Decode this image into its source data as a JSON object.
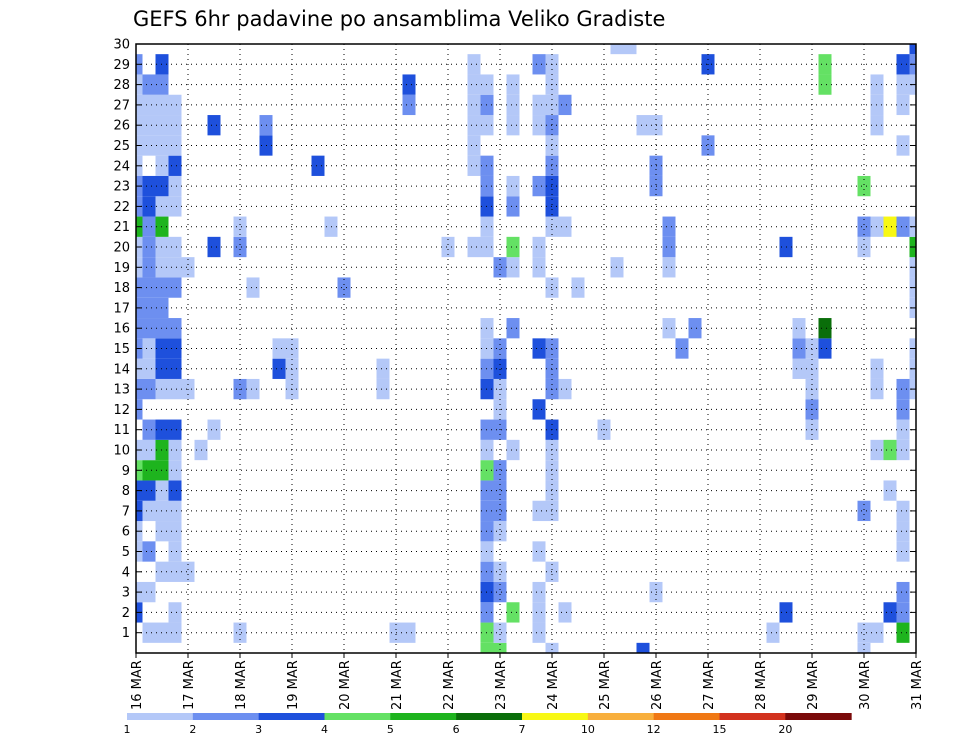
{
  "chart_data": {
    "type": "heatmap",
    "title": "GEFS 6hr padavine po ansamblima Veliko Gradiste",
    "xlabel": "",
    "ylabel": "",
    "x_ticks": [
      "16 MAR",
      "17 MAR",
      "18 MAR",
      "19 MAR",
      "20 MAR",
      "21 MAR",
      "22 MAR",
      "23 MAR",
      "24 MAR",
      "25 MAR",
      "26 MAR",
      "27 MAR",
      "28 MAR",
      "29 MAR",
      "30 MAR",
      "31 MAR"
    ],
    "y_ticks": [
      "1",
      "2",
      "3",
      "4",
      "5",
      "6",
      "7",
      "8",
      "9",
      "10",
      "11",
      "12",
      "13",
      "14",
      "15",
      "16",
      "17",
      "18",
      "19",
      "20",
      "21",
      "22",
      "23",
      "24",
      "25",
      "26",
      "27",
      "28",
      "29",
      "30"
    ],
    "time_steps": 61,
    "members_range": [
      0,
      30
    ],
    "grid": true,
    "colorbar": {
      "labels": [
        "1",
        "2",
        "3",
        "4",
        "5",
        "6",
        "7",
        "10",
        "12",
        "15",
        "20"
      ],
      "colors": [
        "#b4c8f8",
        "#6d8ff0",
        "#1e50dc",
        "#64e164",
        "#1eb41e",
        "#0a6e0a",
        "#f8f814",
        "#f8af3c",
        "#f07814",
        "#d2321e",
        "#7a0a0a"
      ]
    },
    "cells": [
      [
        2,
        0,
        3
      ],
      [
        3,
        0,
        1
      ],
      [
        5,
        0,
        1
      ],
      [
        6,
        0,
        1
      ],
      [
        7,
        0,
        3
      ],
      [
        8,
        0,
        3
      ],
      [
        9,
        0,
        4
      ],
      [
        10,
        0,
        1
      ],
      [
        12,
        0,
        2
      ],
      [
        13,
        0,
        2
      ],
      [
        14,
        0,
        1
      ],
      [
        15,
        0,
        2
      ],
      [
        16,
        0,
        2
      ],
      [
        17,
        0,
        2
      ],
      [
        18,
        0,
        2
      ],
      [
        19,
        0,
        1
      ],
      [
        20,
        0,
        1
      ],
      [
        21,
        0,
        5
      ],
      [
        22,
        0,
        2
      ],
      [
        23,
        0,
        2
      ],
      [
        24,
        0,
        1
      ],
      [
        25,
        0,
        1
      ],
      [
        26,
        0,
        1
      ],
      [
        27,
        0,
        1
      ],
      [
        28,
        0,
        1
      ],
      [
        29,
        0,
        2
      ],
      [
        1,
        1,
        1
      ],
      [
        3,
        1,
        1
      ],
      [
        5,
        1,
        2
      ],
      [
        7,
        1,
        1
      ],
      [
        8,
        1,
        3
      ],
      [
        9,
        1,
        5
      ],
      [
        10,
        1,
        1
      ],
      [
        11,
        1,
        2
      ],
      [
        13,
        1,
        2
      ],
      [
        14,
        1,
        1
      ],
      [
        15,
        1,
        1
      ],
      [
        16,
        1,
        2
      ],
      [
        17,
        1,
        2
      ],
      [
        18,
        1,
        2
      ],
      [
        19,
        1,
        2
      ],
      [
        20,
        1,
        2
      ],
      [
        21,
        1,
        2
      ],
      [
        22,
        1,
        3
      ],
      [
        23,
        1,
        3
      ],
      [
        25,
        1,
        1
      ],
      [
        26,
        1,
        1
      ],
      [
        27,
        1,
        1
      ],
      [
        28,
        1,
        2
      ],
      [
        1,
        2,
        1
      ],
      [
        4,
        2,
        1
      ],
      [
        6,
        2,
        1
      ],
      [
        7,
        2,
        1
      ],
      [
        8,
        2,
        1
      ],
      [
        9,
        2,
        5
      ],
      [
        10,
        2,
        5
      ],
      [
        11,
        2,
        3
      ],
      [
        13,
        2,
        1
      ],
      [
        14,
        2,
        3
      ],
      [
        15,
        2,
        3
      ],
      [
        16,
        2,
        2
      ],
      [
        17,
        2,
        2
      ],
      [
        18,
        2,
        2
      ],
      [
        19,
        2,
        1
      ],
      [
        20,
        2,
        1
      ],
      [
        21,
        2,
        5
      ],
      [
        22,
        2,
        1
      ],
      [
        23,
        2,
        3
      ],
      [
        24,
        2,
        1
      ],
      [
        25,
        2,
        1
      ],
      [
        26,
        2,
        1
      ],
      [
        27,
        2,
        1
      ],
      [
        28,
        2,
        2
      ],
      [
        29,
        2,
        3
      ],
      [
        1,
        3,
        1
      ],
      [
        2,
        3,
        1
      ],
      [
        4,
        3,
        1
      ],
      [
        5,
        3,
        1
      ],
      [
        6,
        3,
        1
      ],
      [
        7,
        3,
        1
      ],
      [
        8,
        3,
        3
      ],
      [
        9,
        3,
        1
      ],
      [
        10,
        3,
        1
      ],
      [
        11,
        3,
        3
      ],
      [
        13,
        3,
        1
      ],
      [
        14,
        3,
        3
      ],
      [
        15,
        3,
        3
      ],
      [
        16,
        3,
        2
      ],
      [
        18,
        3,
        2
      ],
      [
        19,
        3,
        1
      ],
      [
        20,
        3,
        1
      ],
      [
        22,
        3,
        1
      ],
      [
        23,
        3,
        1
      ],
      [
        24,
        3,
        3
      ],
      [
        25,
        3,
        1
      ],
      [
        26,
        3,
        1
      ],
      [
        27,
        3,
        1
      ],
      [
        4,
        4,
        1
      ],
      [
        13,
        4,
        1
      ],
      [
        19,
        4,
        1
      ],
      [
        10,
        5,
        1
      ],
      [
        11,
        6,
        1
      ],
      [
        20,
        6,
        3
      ],
      [
        26,
        6,
        3
      ],
      [
        1,
        8,
        1
      ],
      [
        13,
        8,
        2
      ],
      [
        20,
        8,
        2
      ],
      [
        21,
        8,
        1
      ],
      [
        13,
        9,
        1
      ],
      [
        18,
        9,
        1
      ],
      [
        25,
        10,
        3
      ],
      [
        26,
        10,
        2
      ],
      [
        14,
        11,
        3
      ],
      [
        15,
        11,
        1
      ],
      [
        13,
        12,
        1
      ],
      [
        14,
        12,
        1
      ],
      [
        15,
        12,
        1
      ],
      [
        24,
        14,
        3
      ],
      [
        21,
        15,
        1
      ],
      [
        18,
        16,
        2
      ],
      [
        13,
        19,
        1
      ],
      [
        14,
        19,
        1
      ],
      [
        1,
        20,
        1
      ],
      [
        1,
        21,
        1
      ],
      [
        27,
        21,
        2
      ],
      [
        28,
        21,
        3
      ],
      [
        20,
        24,
        1
      ],
      [
        20,
        26,
        1
      ],
      [
        24,
        26,
        1
      ],
      [
        25,
        26,
        1
      ],
      [
        26,
        26,
        1
      ],
      [
        27,
        26,
        1
      ],
      [
        28,
        26,
        1
      ],
      [
        29,
        26,
        1
      ],
      [
        0,
        27,
        4
      ],
      [
        1,
        27,
        4
      ],
      [
        2,
        27,
        2
      ],
      [
        3,
        27,
        3
      ],
      [
        4,
        27,
        2
      ],
      [
        5,
        27,
        1
      ],
      [
        6,
        27,
        2
      ],
      [
        7,
        27,
        2
      ],
      [
        8,
        27,
        2
      ],
      [
        9,
        27,
        4
      ],
      [
        10,
        27,
        1
      ],
      [
        11,
        27,
        2
      ],
      [
        13,
        27,
        3
      ],
      [
        14,
        27,
        2
      ],
      [
        15,
        27,
        1
      ],
      [
        16,
        27,
        1
      ],
      [
        20,
        27,
        1
      ],
      [
        21,
        27,
        1
      ],
      [
        22,
        27,
        3
      ],
      [
        23,
        27,
        2
      ],
      [
        24,
        27,
        2
      ],
      [
        26,
        27,
        1
      ],
      [
        27,
        27,
        2
      ],
      [
        28,
        27,
        1
      ],
      [
        0,
        28,
        4
      ],
      [
        1,
        28,
        1
      ],
      [
        3,
        28,
        2
      ],
      [
        4,
        28,
        1
      ],
      [
        6,
        28,
        1
      ],
      [
        7,
        28,
        2
      ],
      [
        8,
        28,
        2
      ],
      [
        9,
        28,
        2
      ],
      [
        11,
        28,
        2
      ],
      [
        12,
        28,
        1
      ],
      [
        13,
        28,
        1
      ],
      [
        14,
        28,
        3
      ],
      [
        15,
        28,
        2
      ],
      [
        19,
        28,
        2
      ],
      [
        2,
        29,
        4
      ],
      [
        10,
        29,
        1
      ],
      [
        16,
        29,
        2
      ],
      [
        19,
        29,
        1
      ],
      [
        20,
        29,
        4
      ],
      [
        22,
        29,
        2
      ],
      [
        23,
        29,
        1
      ],
      [
        26,
        29,
        1
      ],
      [
        27,
        29,
        1
      ],
      [
        28,
        29,
        1
      ],
      [
        1,
        31,
        1
      ],
      [
        2,
        31,
        1
      ],
      [
        3,
        31,
        1
      ],
      [
        5,
        31,
        1
      ],
      [
        7,
        31,
        1
      ],
      [
        12,
        31,
        3
      ],
      [
        15,
        31,
        3
      ],
      [
        19,
        31,
        1
      ],
      [
        20,
        31,
        1
      ],
      [
        23,
        31,
        2
      ],
      [
        26,
        31,
        1
      ],
      [
        27,
        31,
        1
      ],
      [
        29,
        31,
        2
      ],
      [
        0,
        32,
        1
      ],
      [
        4,
        32,
        1
      ],
      [
        7,
        32,
        1
      ],
      [
        8,
        32,
        1
      ],
      [
        9,
        32,
        1
      ],
      [
        10,
        32,
        1
      ],
      [
        11,
        32,
        3
      ],
      [
        13,
        32,
        2
      ],
      [
        14,
        32,
        2
      ],
      [
        15,
        32,
        2
      ],
      [
        18,
        32,
        1
      ],
      [
        21,
        32,
        1
      ],
      [
        22,
        32,
        3
      ],
      [
        23,
        32,
        3
      ],
      [
        24,
        32,
        2
      ],
      [
        25,
        32,
        1
      ],
      [
        26,
        32,
        2
      ],
      [
        27,
        32,
        1
      ],
      [
        28,
        32,
        1
      ],
      [
        29,
        32,
        1
      ],
      [
        2,
        33,
        1
      ],
      [
        13,
        33,
        1
      ],
      [
        21,
        33,
        1
      ],
      [
        27,
        33,
        2
      ],
      [
        18,
        34,
        1
      ],
      [
        11,
        36,
        1
      ],
      [
        19,
        37,
        1
      ],
      [
        30,
        37,
        1
      ],
      [
        30,
        38,
        1
      ],
      [
        0,
        39,
        3
      ],
      [
        26,
        39,
        1
      ],
      [
        3,
        40,
        1
      ],
      [
        23,
        40,
        2
      ],
      [
        24,
        40,
        2
      ],
      [
        26,
        40,
        1
      ],
      [
        16,
        41,
        1
      ],
      [
        19,
        41,
        1
      ],
      [
        20,
        41,
        2
      ],
      [
        21,
        41,
        2
      ],
      [
        15,
        42,
        2
      ],
      [
        16,
        43,
        2
      ],
      [
        25,
        44,
        2
      ],
      [
        29,
        44,
        3
      ],
      [
        1,
        49,
        1
      ],
      [
        2,
        50,
        3
      ],
      [
        20,
        50,
        3
      ],
      [
        14,
        51,
        1
      ],
      [
        15,
        51,
        2
      ],
      [
        16,
        51,
        1
      ],
      [
        11,
        52,
        1
      ],
      [
        12,
        52,
        2
      ],
      [
        13,
        52,
        1
      ],
      [
        14,
        52,
        1
      ],
      [
        15,
        52,
        1
      ],
      [
        15,
        53,
        3
      ],
      [
        16,
        53,
        6
      ],
      [
        28,
        53,
        4
      ],
      [
        29,
        53,
        4
      ],
      [
        0,
        56,
        1
      ],
      [
        1,
        56,
        1
      ],
      [
        7,
        56,
        2
      ],
      [
        20,
        56,
        1
      ],
      [
        21,
        56,
        2
      ],
      [
        23,
        56,
        4
      ],
      [
        1,
        57,
        1
      ],
      [
        10,
        57,
        1
      ],
      [
        13,
        57,
        1
      ],
      [
        14,
        57,
        1
      ],
      [
        21,
        57,
        1
      ],
      [
        26,
        57,
        1
      ],
      [
        27,
        57,
        1
      ],
      [
        28,
        57,
        1
      ],
      [
        2,
        58,
        3
      ],
      [
        8,
        58,
        1
      ],
      [
        10,
        58,
        4
      ],
      [
        21,
        58,
        7
      ],
      [
        1,
        59,
        5
      ],
      [
        2,
        59,
        2
      ],
      [
        3,
        59,
        2
      ],
      [
        5,
        59,
        1
      ],
      [
        6,
        59,
        1
      ],
      [
        7,
        59,
        1
      ],
      [
        10,
        59,
        1
      ],
      [
        11,
        59,
        1
      ],
      [
        12,
        59,
        2
      ],
      [
        13,
        59,
        2
      ],
      [
        21,
        59,
        2
      ],
      [
        25,
        59,
        1
      ],
      [
        27,
        59,
        1
      ],
      [
        28,
        59,
        1
      ],
      [
        29,
        59,
        3
      ],
      [
        13,
        60,
        1
      ],
      [
        14,
        60,
        1
      ],
      [
        15,
        60,
        1
      ],
      [
        17,
        60,
        1
      ],
      [
        18,
        60,
        1
      ],
      [
        19,
        60,
        1
      ],
      [
        20,
        60,
        5
      ],
      [
        21,
        60,
        1
      ],
      [
        28,
        60,
        1
      ],
      [
        29,
        60,
        2
      ],
      [
        30,
        60,
        3
      ]
    ]
  }
}
